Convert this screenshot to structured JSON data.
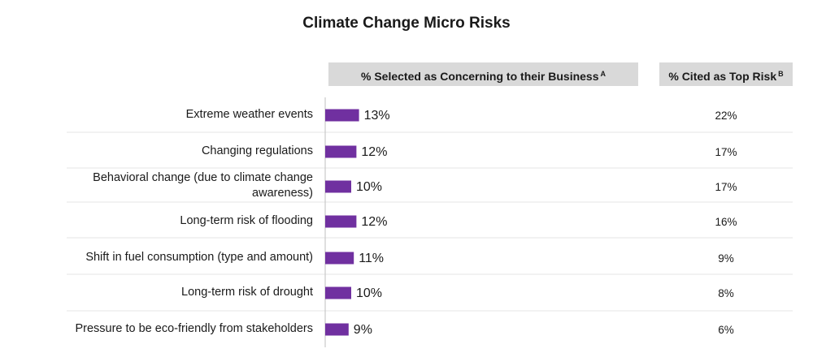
{
  "title": "Climate Change Micro Risks",
  "headers": {
    "selected": "% Selected as Concerning to their Business",
    "selected_sup": "A",
    "top": "% Cited as Top Risk",
    "top_sup": "B"
  },
  "colors": {
    "bar": "#7030a0",
    "divider": "#e6e6e6",
    "axis": "#bfbfbf",
    "header_bg": "#d9d9d9"
  },
  "chart_data": {
    "type": "bar",
    "orientation": "horizontal",
    "title": "Climate Change Micro Risks",
    "categories": [
      "Extreme weather events",
      "Changing regulations",
      "Behavioral change (due to climate change awareness)",
      "Long-term risk of flooding",
      "Shift in fuel consumption (type and amount)",
      "Long-term risk of drought",
      "Pressure to be eco-friendly from stakeholders"
    ],
    "series": [
      {
        "name": "% Selected as Concerning to their Business",
        "values": [
          13,
          12,
          10,
          12,
          11,
          10,
          9
        ],
        "labels": [
          "13%",
          "12%",
          "10%",
          "12%",
          "11%",
          "10%",
          "9%"
        ]
      },
      {
        "name": "% Cited as Top Risk",
        "values": [
          22,
          17,
          17,
          16,
          9,
          8,
          6
        ],
        "labels": [
          "22%",
          "17%",
          "17%",
          "16%",
          "9%",
          "8%",
          "6%"
        ]
      }
    ],
    "xlim": [
      0,
      100
    ],
    "grid": false
  }
}
